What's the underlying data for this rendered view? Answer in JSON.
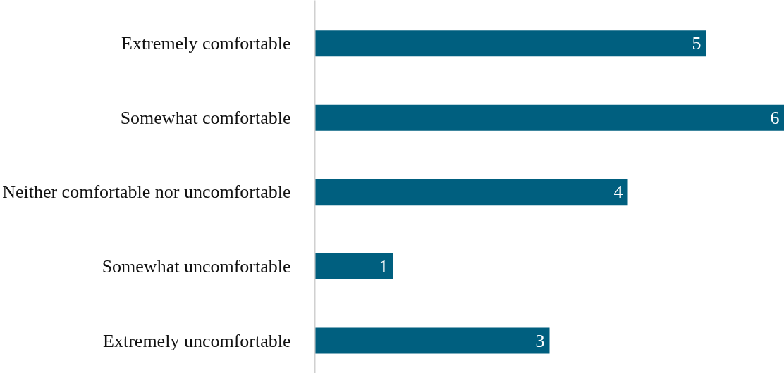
{
  "chart_data": {
    "type": "bar",
    "orientation": "horizontal",
    "categories": [
      "Extremely comfortable",
      "Somewhat comfortable",
      "Neither comfortable nor uncomfortable",
      "Somewhat uncomfortable",
      "Extremely uncomfortable"
    ],
    "values": [
      5,
      6,
      4,
      1,
      3
    ],
    "color": "#005f7f",
    "xlim": [
      0,
      6
    ],
    "data_labels": true,
    "tick_labels": "y",
    "grid": false
  }
}
